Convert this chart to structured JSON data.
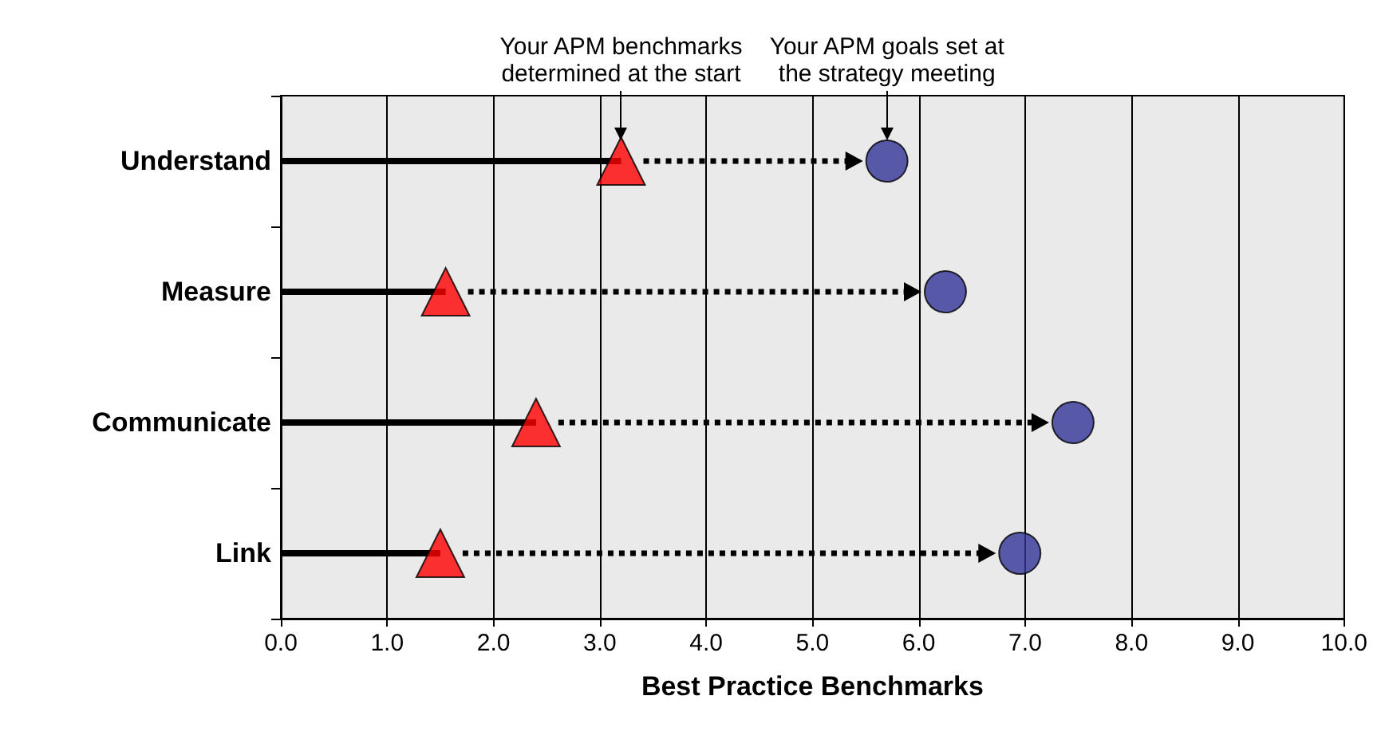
{
  "chart_data": {
    "type": "lollipop",
    "orientation": "horizontal",
    "xlabel": "Best Practice Benchmarks",
    "categories": [
      "Understand",
      "Measure",
      "Communicate",
      "Link"
    ],
    "series": [
      {
        "type": "lollipop",
        "color": "#ff0000",
        "marker": "triangle",
        "line_style": "solid",
        "values": [
          3.2,
          1.55,
          2.4,
          1.5
        ]
      },
      {
        "type": "scatter",
        "color": "#333399",
        "marker": "circle",
        "line_style": "dotted",
        "values": [
          5.7,
          6.25,
          7.45,
          6.95
        ]
      }
    ],
    "xlim": [
      0,
      10
    ],
    "xticks": [
      {
        "value": 0,
        "label": "0.0"
      },
      {
        "value": 1,
        "label": "1.0"
      },
      {
        "value": 2,
        "label": "2.0"
      },
      {
        "value": 3,
        "label": "3.0"
      },
      {
        "value": 4,
        "label": "4.0"
      },
      {
        "value": 5,
        "label": "5.0"
      },
      {
        "value": 6,
        "label": "6.0"
      },
      {
        "value": 7,
        "label": "7.0"
      },
      {
        "value": 8,
        "label": "8.0"
      },
      {
        "value": 9,
        "label": "9.0"
      },
      {
        "value": 10,
        "label": "10.0"
      }
    ],
    "grid": "x",
    "annotations": [
      {
        "text": "Your APM benchmarks\ndetermined at the start",
        "x": 3.2
      },
      {
        "text": "Your APM goals set at\nthe strategy meeting",
        "x": 5.7
      }
    ]
  }
}
